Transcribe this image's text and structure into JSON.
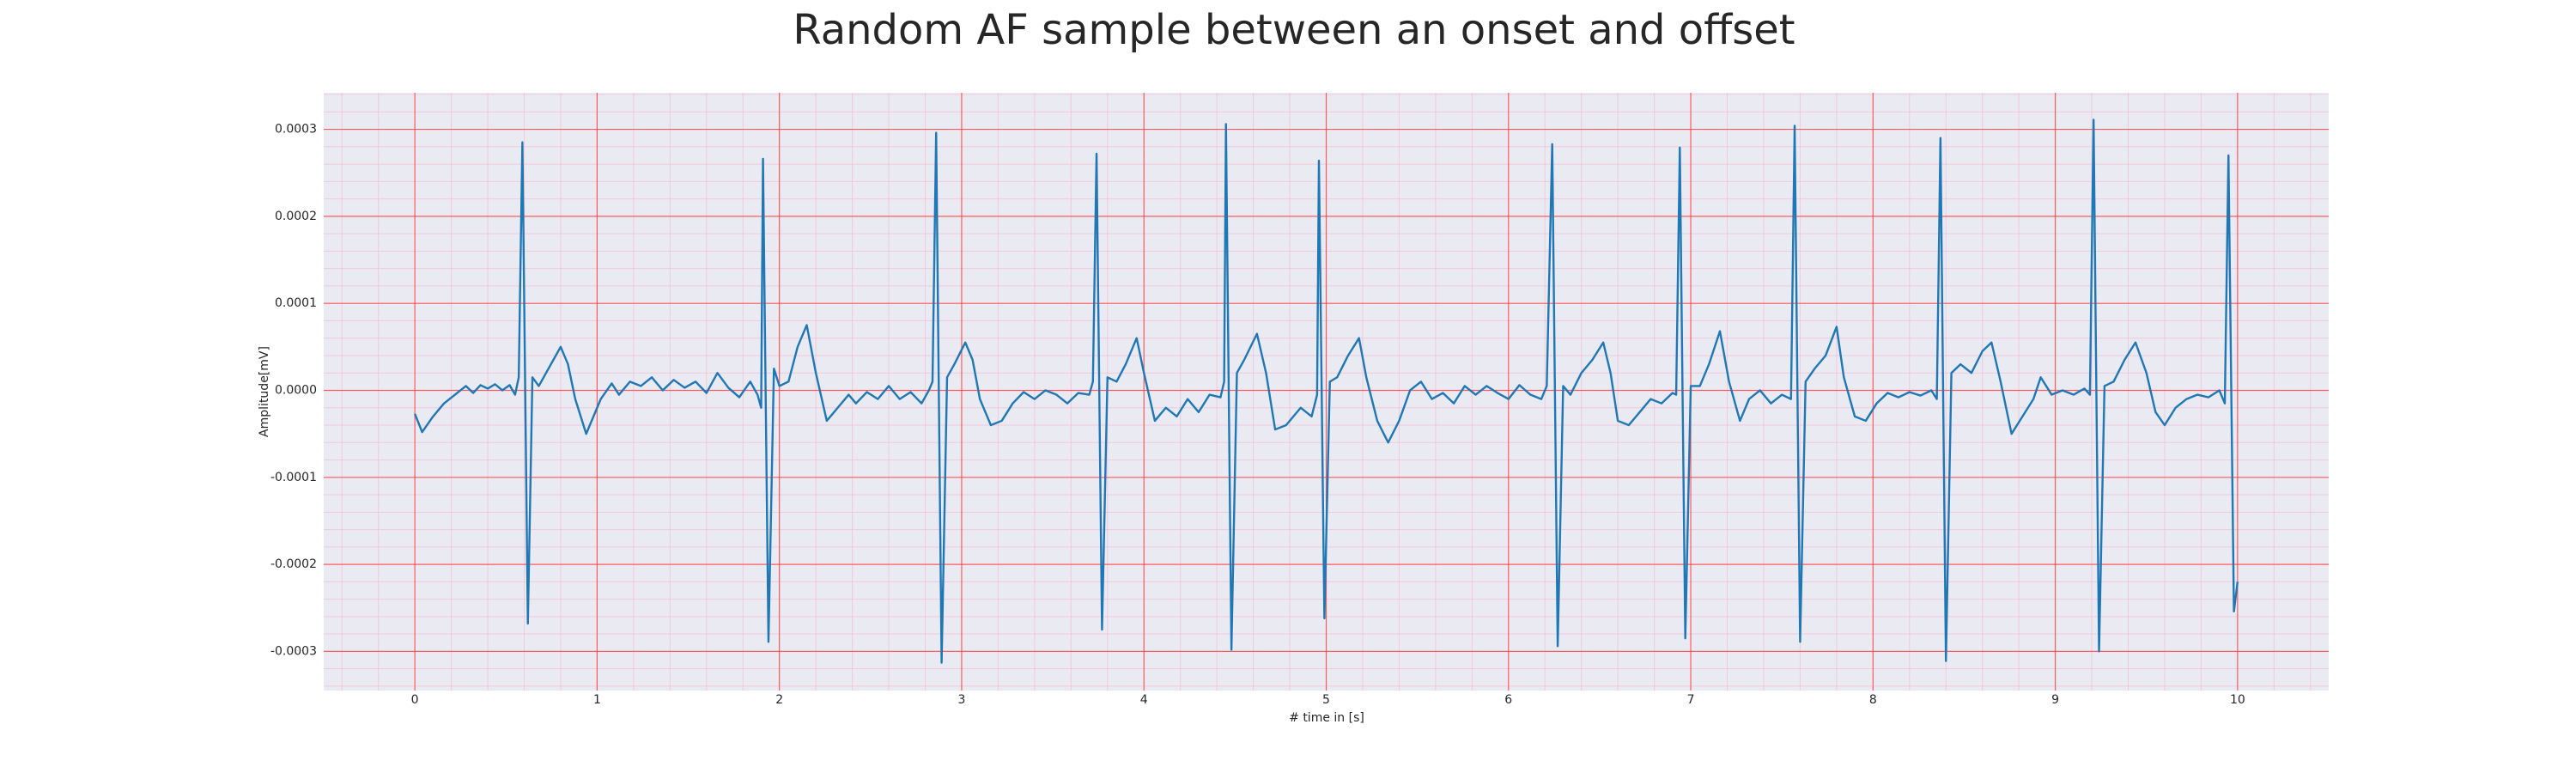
{
  "chart_data": {
    "type": "line",
    "title": "Random AF sample between an onset and offset",
    "xlabel": "# time in [s]",
    "ylabel": "Amplitude[mV]",
    "color": "#1f77b4",
    "grid": true,
    "minor_grid": true,
    "xlim": [
      -0.5,
      10.5
    ],
    "ylim": [
      -0.000345,
      0.000342
    ],
    "xticks": [
      0,
      1,
      2,
      3,
      4,
      5,
      6,
      7,
      8,
      9,
      10
    ],
    "yticks": [
      -0.0003,
      -0.0002,
      -0.0001,
      {
        "value": 0,
        "label": "0.0000"
      },
      0.0001,
      0.0002,
      0.0003
    ],
    "x": [
      0.0,
      0.04,
      0.1,
      0.16,
      0.22,
      0.28,
      0.32,
      0.36,
      0.4,
      0.44,
      0.48,
      0.52,
      0.55,
      0.57,
      0.59,
      0.62,
      0.645,
      0.68,
      0.72,
      0.76,
      0.8,
      0.84,
      0.88,
      0.94,
      0.98,
      1.02,
      1.08,
      1.12,
      1.18,
      1.24,
      1.3,
      1.36,
      1.42,
      1.48,
      1.54,
      1.6,
      1.66,
      1.72,
      1.78,
      1.84,
      1.88,
      1.9,
      1.91,
      1.94,
      1.97,
      2.0,
      2.05,
      2.1,
      2.15,
      2.2,
      2.26,
      2.32,
      2.38,
      2.42,
      2.48,
      2.54,
      2.6,
      2.66,
      2.72,
      2.78,
      2.82,
      2.84,
      2.86,
      2.89,
      2.92,
      2.96,
      3.02,
      3.06,
      3.1,
      3.16,
      3.22,
      3.28,
      3.34,
      3.4,
      3.46,
      3.52,
      3.58,
      3.64,
      3.7,
      3.72,
      3.74,
      3.77,
      3.8,
      3.85,
      3.9,
      3.96,
      4.0,
      4.06,
      4.12,
      4.18,
      4.24,
      4.3,
      4.36,
      4.42,
      4.44,
      4.45,
      4.48,
      4.51,
      4.55,
      4.62,
      4.67,
      4.72,
      4.78,
      4.86,
      4.92,
      4.95,
      4.96,
      4.99,
      5.02,
      5.06,
      5.12,
      5.18,
      5.22,
      5.28,
      5.34,
      5.4,
      5.46,
      5.52,
      5.58,
      5.64,
      5.7,
      5.76,
      5.82,
      5.88,
      5.94,
      6.0,
      6.06,
      6.12,
      6.18,
      6.21,
      6.24,
      6.27,
      6.3,
      6.34,
      6.4,
      6.46,
      6.52,
      6.56,
      6.6,
      6.66,
      6.72,
      6.78,
      6.84,
      6.9,
      6.92,
      6.94,
      6.97,
      7.0,
      7.05,
      7.1,
      7.16,
      7.21,
      7.27,
      7.32,
      7.38,
      7.44,
      7.5,
      7.55,
      7.57,
      7.6,
      7.63,
      7.68,
      7.74,
      7.8,
      7.84,
      7.9,
      7.96,
      8.02,
      8.08,
      8.14,
      8.2,
      8.26,
      8.32,
      8.35,
      8.37,
      8.4,
      8.43,
      8.48,
      8.54,
      8.6,
      8.65,
      8.7,
      8.76,
      8.82,
      8.88,
      8.92,
      8.98,
      9.04,
      9.1,
      9.16,
      9.19,
      9.21,
      9.24,
      9.27,
      9.32,
      9.38,
      9.44,
      9.5,
      9.55,
      9.6,
      9.66,
      9.72,
      9.78,
      9.84,
      9.9,
      9.93,
      9.95,
      9.98,
      10.0
    ],
    "values": [
      -2.7e-05,
      -4.8e-05,
      -3e-05,
      -1.5e-05,
      -5e-06,
      5e-06,
      -3e-06,
      6e-06,
      2e-06,
      7e-06,
      0,
      6e-06,
      -5e-06,
      1.5e-05,
      0.000285,
      -0.000268,
      1.5e-05,
      5e-06,
      2e-05,
      3.5e-05,
      5e-05,
      3e-05,
      -1e-05,
      -5e-05,
      -3e-05,
      -1e-05,
      8e-06,
      -5e-06,
      1e-05,
      5e-06,
      1.5e-05,
      0,
      1.2e-05,
      3e-06,
      1e-05,
      -3e-06,
      2e-05,
      3e-06,
      -8e-06,
      1e-05,
      -5e-06,
      -2e-05,
      0.000266,
      -0.000289,
      2.5e-05,
      5e-06,
      1e-05,
      5e-05,
      7.5e-05,
      2e-05,
      -3.5e-05,
      -2e-05,
      -5e-06,
      -1.5e-05,
      -2e-06,
      -1e-05,
      5e-06,
      -1e-05,
      -2e-06,
      -1.5e-05,
      0,
      1e-05,
      0.000296,
      -0.000313,
      1.5e-05,
      3e-05,
      5.5e-05,
      3.5e-05,
      -1e-05,
      -4e-05,
      -3.5e-05,
      -1.5e-05,
      -2e-06,
      -1e-05,
      0,
      -5e-06,
      -1.5e-05,
      -3e-06,
      -5e-06,
      1e-05,
      0.000272,
      -0.000275,
      1.5e-05,
      1e-05,
      3e-05,
      6e-05,
      2e-05,
      -3.5e-05,
      -2e-05,
      -3e-05,
      -1e-05,
      -2.5e-05,
      -5e-06,
      -8e-06,
      1e-05,
      0.000306,
      -0.000298,
      2e-05,
      3.5e-05,
      6.5e-05,
      2e-05,
      -4.5e-05,
      -4e-05,
      -2e-05,
      -3e-05,
      -5e-06,
      0.000264,
      -0.000262,
      1e-05,
      1.5e-05,
      4e-05,
      6e-05,
      1.5e-05,
      -3.5e-05,
      -6e-05,
      -3.5e-05,
      0,
      1e-05,
      -1e-05,
      -3e-06,
      -1.5e-05,
      5e-06,
      -5e-06,
      5e-06,
      -3e-06,
      -1e-05,
      6e-06,
      -5e-06,
      -1e-05,
      5e-06,
      0.000283,
      -0.000294,
      5e-06,
      -5e-06,
      2e-05,
      3.5e-05,
      5.5e-05,
      2e-05,
      -3.5e-05,
      -4e-05,
      -2.5e-05,
      -1e-05,
      -1.5e-05,
      -3e-06,
      -5e-06,
      0.000279,
      -0.000285,
      5e-06,
      5e-06,
      3e-05,
      6.8e-05,
      1e-05,
      -3.5e-05,
      -1e-05,
      0,
      -1.5e-05,
      -5e-06,
      -1e-05,
      0.000304,
      -0.000289,
      1e-05,
      2.5e-05,
      4e-05,
      7.3e-05,
      1.5e-05,
      -3e-05,
      -3.5e-05,
      -1.5e-05,
      -3e-06,
      -8e-06,
      -2e-06,
      -6e-06,
      0,
      -1e-05,
      0.00029,
      -0.000311,
      2e-05,
      3e-05,
      2e-05,
      4.5e-05,
      5.5e-05,
      1e-05,
      -5e-05,
      -3e-05,
      -1e-05,
      1.5e-05,
      -5e-06,
      0,
      -5e-06,
      2e-06,
      -5e-06,
      0.000311,
      -0.0003,
      5e-06,
      1e-05,
      3.5e-05,
      5.5e-05,
      2e-05,
      -2.5e-05,
      -4e-05,
      -2e-05,
      -1e-05,
      -5e-06,
      -8e-06,
      0,
      -1.5e-05,
      0.00027,
      -0.000254,
      -0.00022
    ]
  }
}
